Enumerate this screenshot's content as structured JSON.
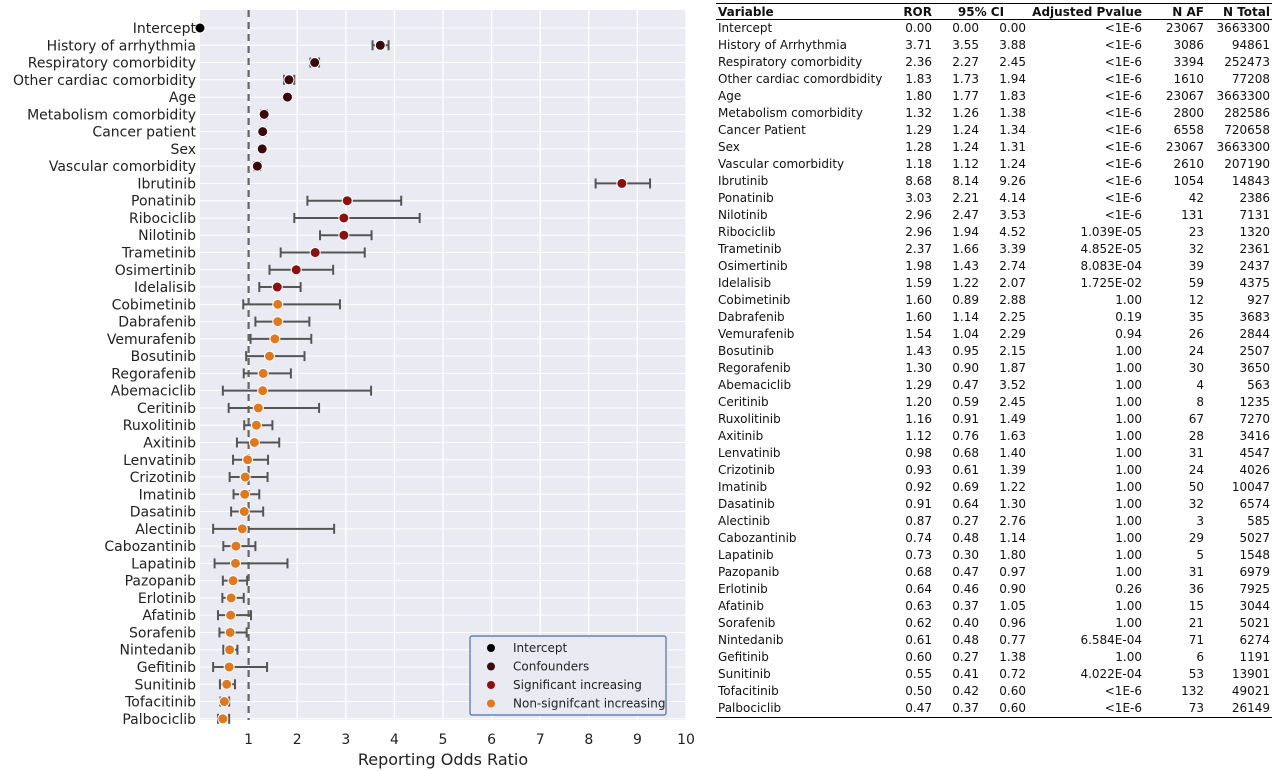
{
  "chart_data": {
    "type": "scatter",
    "subtype": "forest-plot",
    "xlabel": "Reporting Odds Ratio",
    "xlim": [
      0,
      10
    ],
    "xticks": [
      1,
      2,
      3,
      4,
      5,
      6,
      7,
      8,
      9,
      10
    ],
    "reference_line_x": 1,
    "grid": true,
    "legend_position": "bottom-right",
    "legend": [
      {
        "key": "intercept",
        "label": "Intercept",
        "color": "#000000"
      },
      {
        "key": "confounder",
        "label": "Confounders",
        "color": "#3a0a0a"
      },
      {
        "key": "significant",
        "label": "Significant increasing",
        "color": "#8b1010"
      },
      {
        "key": "nonsignificant",
        "label": "Non-signifcant increasing",
        "color": "#e0781e"
      }
    ],
    "points": [
      {
        "label": "Intercept",
        "ror": 0.0,
        "ci": [
          0.0,
          0.0
        ],
        "group": "intercept"
      },
      {
        "label": "History of arrhythmia",
        "ror": 3.71,
        "ci": [
          3.55,
          3.88
        ],
        "group": "confounder"
      },
      {
        "label": "Respiratory comorbidity",
        "ror": 2.36,
        "ci": [
          2.27,
          2.45
        ],
        "group": "confounder"
      },
      {
        "label": "Other cardiac comorbidity",
        "ror": 1.83,
        "ci": [
          1.73,
          1.94
        ],
        "group": "confounder"
      },
      {
        "label": "Age",
        "ror": 1.8,
        "ci": [
          1.77,
          1.83
        ],
        "group": "confounder"
      },
      {
        "label": "Metabolism comorbidity",
        "ror": 1.32,
        "ci": [
          1.26,
          1.38
        ],
        "group": "confounder"
      },
      {
        "label": "Cancer patient",
        "ror": 1.29,
        "ci": [
          1.24,
          1.34
        ],
        "group": "confounder"
      },
      {
        "label": "Sex",
        "ror": 1.28,
        "ci": [
          1.24,
          1.31
        ],
        "group": "confounder"
      },
      {
        "label": "Vascular comorbidity",
        "ror": 1.18,
        "ci": [
          1.12,
          1.24
        ],
        "group": "confounder"
      },
      {
        "label": "Ibrutinib",
        "ror": 8.68,
        "ci": [
          8.14,
          9.26
        ],
        "group": "significant"
      },
      {
        "label": "Ponatinib",
        "ror": 3.03,
        "ci": [
          2.21,
          4.14
        ],
        "group": "significant"
      },
      {
        "label": "Ribociclib",
        "ror": 2.96,
        "ci": [
          1.94,
          4.52
        ],
        "group": "significant"
      },
      {
        "label": "Nilotinib",
        "ror": 2.96,
        "ci": [
          2.47,
          3.53
        ],
        "group": "significant"
      },
      {
        "label": "Trametinib",
        "ror": 2.37,
        "ci": [
          1.66,
          3.39
        ],
        "group": "significant"
      },
      {
        "label": "Osimertinib",
        "ror": 1.98,
        "ci": [
          1.43,
          2.74
        ],
        "group": "significant"
      },
      {
        "label": "Idelalisib",
        "ror": 1.59,
        "ci": [
          1.22,
          2.07
        ],
        "group": "significant"
      },
      {
        "label": "Cobimetinib",
        "ror": 1.6,
        "ci": [
          0.89,
          2.88
        ],
        "group": "nonsignificant"
      },
      {
        "label": "Dabrafenib",
        "ror": 1.6,
        "ci": [
          1.14,
          2.25
        ],
        "group": "nonsignificant"
      },
      {
        "label": "Vemurafenib",
        "ror": 1.54,
        "ci": [
          1.04,
          2.29
        ],
        "group": "nonsignificant"
      },
      {
        "label": "Bosutinib",
        "ror": 1.43,
        "ci": [
          0.95,
          2.15
        ],
        "group": "nonsignificant"
      },
      {
        "label": "Regorafenib",
        "ror": 1.3,
        "ci": [
          0.9,
          1.87
        ],
        "group": "nonsignificant"
      },
      {
        "label": "Abemaciclib",
        "ror": 1.29,
        "ci": [
          0.47,
          3.52
        ],
        "group": "nonsignificant"
      },
      {
        "label": "Ceritinib",
        "ror": 1.2,
        "ci": [
          0.59,
          2.45
        ],
        "group": "nonsignificant"
      },
      {
        "label": "Ruxolitinib",
        "ror": 1.16,
        "ci": [
          0.91,
          1.49
        ],
        "group": "nonsignificant"
      },
      {
        "label": "Axitinib",
        "ror": 1.12,
        "ci": [
          0.76,
          1.63
        ],
        "group": "nonsignificant"
      },
      {
        "label": "Lenvatinib",
        "ror": 0.98,
        "ci": [
          0.68,
          1.4
        ],
        "group": "nonsignificant"
      },
      {
        "label": "Crizotinib",
        "ror": 0.93,
        "ci": [
          0.61,
          1.39
        ],
        "group": "nonsignificant"
      },
      {
        "label": "Imatinib",
        "ror": 0.92,
        "ci": [
          0.69,
          1.22
        ],
        "group": "nonsignificant"
      },
      {
        "label": "Dasatinib",
        "ror": 0.91,
        "ci": [
          0.64,
          1.3
        ],
        "group": "nonsignificant"
      },
      {
        "label": "Alectinib",
        "ror": 0.87,
        "ci": [
          0.27,
          2.76
        ],
        "group": "nonsignificant"
      },
      {
        "label": "Cabozantinib",
        "ror": 0.74,
        "ci": [
          0.48,
          1.14
        ],
        "group": "nonsignificant"
      },
      {
        "label": "Lapatinib",
        "ror": 0.73,
        "ci": [
          0.3,
          1.8
        ],
        "group": "nonsignificant"
      },
      {
        "label": "Pazopanib",
        "ror": 0.68,
        "ci": [
          0.47,
          0.97
        ],
        "group": "nonsignificant"
      },
      {
        "label": "Erlotinib",
        "ror": 0.64,
        "ci": [
          0.46,
          0.9
        ],
        "group": "nonsignificant"
      },
      {
        "label": "Afatinib",
        "ror": 0.63,
        "ci": [
          0.37,
          1.05
        ],
        "group": "nonsignificant"
      },
      {
        "label": "Sorafenib",
        "ror": 0.62,
        "ci": [
          0.4,
          0.96
        ],
        "group": "nonsignificant"
      },
      {
        "label": "Nintedanib",
        "ror": 0.61,
        "ci": [
          0.48,
          0.77
        ],
        "group": "nonsignificant"
      },
      {
        "label": "Gefitinib",
        "ror": 0.6,
        "ci": [
          0.27,
          1.38
        ],
        "group": "nonsignificant"
      },
      {
        "label": "Sunitinib",
        "ror": 0.55,
        "ci": [
          0.41,
          0.72
        ],
        "group": "nonsignificant"
      },
      {
        "label": "Tofacitinib",
        "ror": 0.5,
        "ci": [
          0.42,
          0.6
        ],
        "group": "nonsignificant"
      },
      {
        "label": "Palbociclib",
        "ror": 0.47,
        "ci": [
          0.37,
          0.6
        ],
        "group": "nonsignificant"
      }
    ]
  },
  "table": {
    "headers": [
      "Variable",
      "ROR",
      "95% CI",
      "Adjusted Pvalue",
      "N AF",
      "N Total"
    ],
    "rows": [
      [
        "Intercept",
        "0.00",
        "0.00",
        "0.00",
        "<1E-6",
        "23067",
        "3663300"
      ],
      [
        "History of Arrhythmia",
        "3.71",
        "3.55",
        "3.88",
        "<1E-6",
        "3086",
        "94861"
      ],
      [
        "Respiratory comorbidity",
        "2.36",
        "2.27",
        "2.45",
        "<1E-6",
        "3394",
        "252473"
      ],
      [
        "Other cardiac comordbidity",
        "1.83",
        "1.73",
        "1.94",
        "<1E-6",
        "1610",
        "77208"
      ],
      [
        "Age",
        "1.80",
        "1.77",
        "1.83",
        "<1E-6",
        "23067",
        "3663300"
      ],
      [
        "Metabolism comorbidity",
        "1.32",
        "1.26",
        "1.38",
        "<1E-6",
        "2800",
        "282586"
      ],
      [
        "Cancer Patient",
        "1.29",
        "1.24",
        "1.34",
        "<1E-6",
        "6558",
        "720658"
      ],
      [
        "Sex",
        "1.28",
        "1.24",
        "1.31",
        "<1E-6",
        "23067",
        "3663300"
      ],
      [
        "Vascular comorbidity",
        "1.18",
        "1.12",
        "1.24",
        "<1E-6",
        "2610",
        "207190"
      ],
      [
        "Ibrutinib",
        "8.68",
        "8.14",
        "9.26",
        "<1E-6",
        "1054",
        "14843"
      ],
      [
        "Ponatinib",
        "3.03",
        "2.21",
        "4.14",
        "<1E-6",
        "42",
        "2386"
      ],
      [
        "Nilotinib",
        "2.96",
        "2.47",
        "3.53",
        "<1E-6",
        "131",
        "7131"
      ],
      [
        "Ribociclib",
        "2.96",
        "1.94",
        "4.52",
        "1.039E-05",
        "23",
        "1320"
      ],
      [
        "Trametinib",
        "2.37",
        "1.66",
        "3.39",
        "4.852E-05",
        "32",
        "2361"
      ],
      [
        "Osimertinib",
        "1.98",
        "1.43",
        "2.74",
        "8.083E-04",
        "39",
        "2437"
      ],
      [
        "Idelalisib",
        "1.59",
        "1.22",
        "2.07",
        "1.725E-02",
        "59",
        "4375"
      ],
      [
        "Cobimetinib",
        "1.60",
        "0.89",
        "2.88",
        "1.00",
        "12",
        "927"
      ],
      [
        "Dabrafenib",
        "1.60",
        "1.14",
        "2.25",
        "0.19",
        "35",
        "3683"
      ],
      [
        "Vemurafenib",
        "1.54",
        "1.04",
        "2.29",
        "0.94",
        "26",
        "2844"
      ],
      [
        "Bosutinib",
        "1.43",
        "0.95",
        "2.15",
        "1.00",
        "24",
        "2507"
      ],
      [
        "Regorafenib",
        "1.30",
        "0.90",
        "1.87",
        "1.00",
        "30",
        "3650"
      ],
      [
        "Abemaciclib",
        "1.29",
        "0.47",
        "3.52",
        "1.00",
        "4",
        "563"
      ],
      [
        "Ceritinib",
        "1.20",
        "0.59",
        "2.45",
        "1.00",
        "8",
        "1235"
      ],
      [
        "Ruxolitinib",
        "1.16",
        "0.91",
        "1.49",
        "1.00",
        "67",
        "7270"
      ],
      [
        "Axitinib",
        "1.12",
        "0.76",
        "1.63",
        "1.00",
        "28",
        "3416"
      ],
      [
        "Lenvatinib",
        "0.98",
        "0.68",
        "1.40",
        "1.00",
        "31",
        "4547"
      ],
      [
        "Crizotinib",
        "0.93",
        "0.61",
        "1.39",
        "1.00",
        "24",
        "4026"
      ],
      [
        "Imatinib",
        "0.92",
        "0.69",
        "1.22",
        "1.00",
        "50",
        "10047"
      ],
      [
        "Dasatinib",
        "0.91",
        "0.64",
        "1.30",
        "1.00",
        "32",
        "6574"
      ],
      [
        "Alectinib",
        "0.87",
        "0.27",
        "2.76",
        "1.00",
        "3",
        "585"
      ],
      [
        "Cabozantinib",
        "0.74",
        "0.48",
        "1.14",
        "1.00",
        "29",
        "5027"
      ],
      [
        "Lapatinib",
        "0.73",
        "0.30",
        "1.80",
        "1.00",
        "5",
        "1548"
      ],
      [
        "Pazopanib",
        "0.68",
        "0.47",
        "0.97",
        "1.00",
        "31",
        "6979"
      ],
      [
        "Erlotinib",
        "0.64",
        "0.46",
        "0.90",
        "0.26",
        "36",
        "7925"
      ],
      [
        "Afatinib",
        "0.63",
        "0.37",
        "1.05",
        "1.00",
        "15",
        "3044"
      ],
      [
        "Sorafenib",
        "0.62",
        "0.40",
        "0.96",
        "1.00",
        "21",
        "5021"
      ],
      [
        "Nintedanib",
        "0.61",
        "0.48",
        "0.77",
        "6.584E-04",
        "71",
        "6274"
      ],
      [
        "Gefitinib",
        "0.60",
        "0.27",
        "1.38",
        "1.00",
        "6",
        "1191"
      ],
      [
        "Sunitinib",
        "0.55",
        "0.41",
        "0.72",
        "4.022E-04",
        "53",
        "13901"
      ],
      [
        "Tofacitinib",
        "0.50",
        "0.42",
        "0.60",
        "<1E-6",
        "132",
        "49021"
      ],
      [
        "Palbociclib",
        "0.47",
        "0.37",
        "0.60",
        "<1E-6",
        "73",
        "26149"
      ]
    ]
  }
}
